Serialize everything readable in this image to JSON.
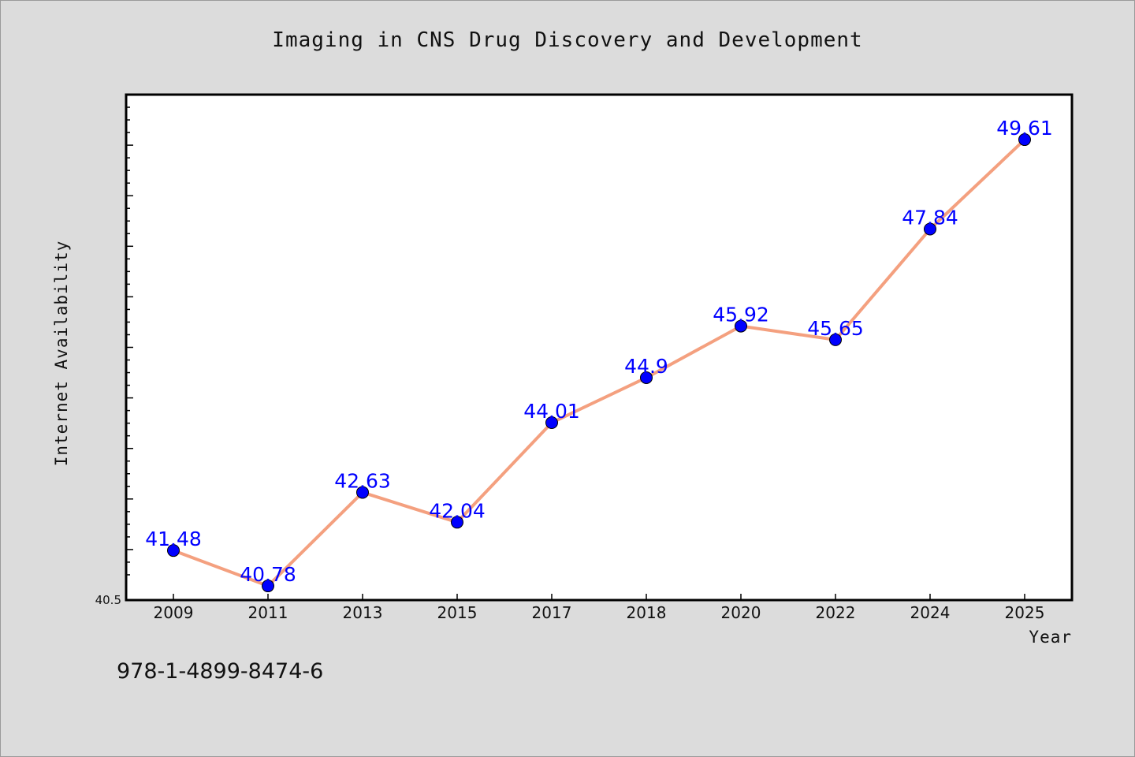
{
  "chart_data": {
    "type": "line",
    "title": "Imaging in CNS Drug Discovery and Development",
    "xlabel": "Year",
    "ylabel": "Internet Availability",
    "categories": [
      "2009",
      "2011",
      "2013",
      "2015",
      "2017",
      "2018",
      "2020",
      "2022",
      "2024",
      "2025"
    ],
    "series": [
      {
        "values": [
          41.48,
          40.78,
          42.63,
          42.04,
          44.01,
          44.9,
          45.92,
          45.65,
          47.84,
          49.61
        ],
        "labels": [
          "41.48",
          "40.78",
          "42.63",
          "42.04",
          "44.01",
          "44.9",
          "45.92",
          "45.65",
          "47.84",
          "49.61"
        ]
      }
    ],
    "ylim": [
      40.5,
      50.5
    ],
    "y_tick_label": "40.5",
    "grid": false,
    "line_color": "#f4a07f",
    "marker_color": "#0000ff",
    "label_color": "#0000ff"
  },
  "footnote": "978-1-4899-8474-6"
}
